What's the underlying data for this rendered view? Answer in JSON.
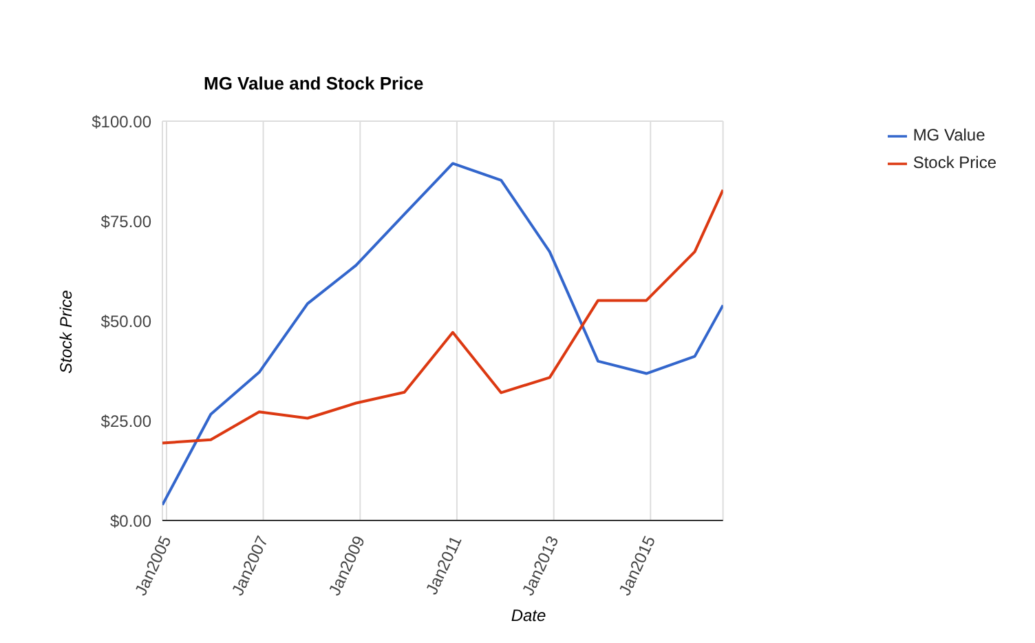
{
  "chart_data": {
    "type": "line",
    "title": "MG Value and Stock Price",
    "xlabel": "Date",
    "ylabel": "Stock Price",
    "x": [
      "2004-12",
      "2005-12",
      "2006-12",
      "2007-12",
      "2008-12",
      "2009-12",
      "2010-12",
      "2011-12",
      "2012-12",
      "2013-12",
      "2014-12",
      "2015-12",
      "2016-07"
    ],
    "series": [
      {
        "name": "MG Value",
        "color": "#3366cc",
        "values": [
          3.9,
          26.6,
          37.1,
          54.3,
          63.9,
          76.7,
          89.4,
          85.2,
          67.3,
          39.9,
          36.8,
          41.1,
          53.9
        ]
      },
      {
        "name": "Stock Price",
        "color": "#dc3912",
        "values": [
          19.4,
          20.2,
          27.2,
          25.6,
          29.4,
          32.1,
          47.1,
          32.0,
          35.8,
          55.1,
          55.1,
          67.3,
          82.8
        ]
      }
    ],
    "xlim": [
      "2004-12",
      "2016-07"
    ],
    "xticks": [
      {
        "value": "2005-01",
        "label": "Jan2005"
      },
      {
        "value": "2007-01",
        "label": "Jan2007"
      },
      {
        "value": "2009-01",
        "label": "Jan2009"
      },
      {
        "value": "2011-01",
        "label": "Jan2011"
      },
      {
        "value": "2013-01",
        "label": "Jan2013"
      },
      {
        "value": "2015-01",
        "label": "Jan2015"
      }
    ],
    "ylim": [
      0,
      100
    ],
    "yticks": [
      {
        "value": 0,
        "label": "$0.00"
      },
      {
        "value": 25,
        "label": "$25.00"
      },
      {
        "value": 50,
        "label": "$50.00"
      },
      {
        "value": 75,
        "label": "$75.00"
      },
      {
        "value": 100,
        "label": "$100.00"
      }
    ],
    "grid": true,
    "legend": "right",
    "marker": "none",
    "line_style": "solid"
  }
}
